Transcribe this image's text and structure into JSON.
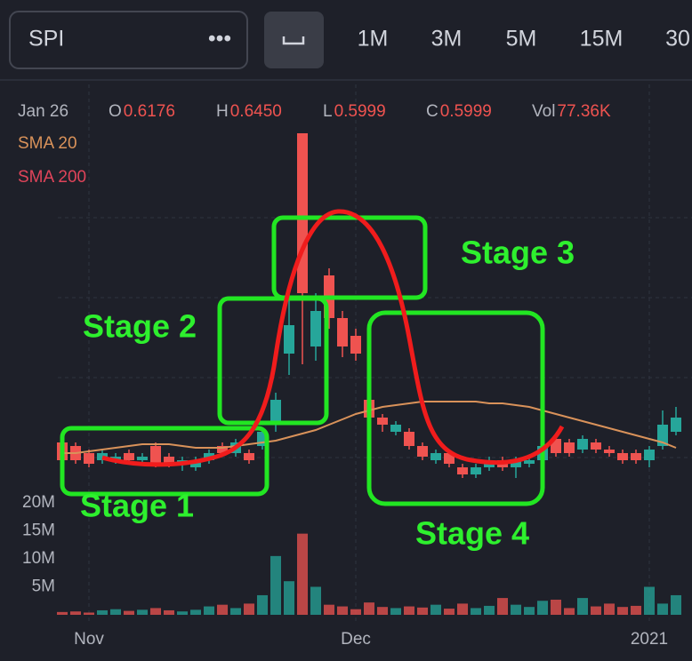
{
  "toolbar": {
    "symbol": "SPI",
    "more": "•••",
    "timeframes": [
      "1M",
      "3M",
      "5M",
      "15M",
      "30"
    ]
  },
  "legend": {
    "date": "Jan 26",
    "items": [
      {
        "label": "O",
        "value": "0.6176"
      },
      {
        "label": "H",
        "value": "0.6450"
      },
      {
        "label": "L",
        "value": "0.5999"
      },
      {
        "label": "C",
        "value": "0.5999"
      },
      {
        "label": "Vol",
        "value": "77.36K"
      }
    ],
    "sma200": "SMA 200"
  },
  "chart_data": {
    "type": "candlestick",
    "categories": [
      null,
      null,
      "Nov",
      null,
      null,
      null,
      null,
      null,
      null,
      null,
      null,
      null,
      null,
      null,
      null,
      null,
      null,
      null,
      null,
      null,
      null,
      null,
      "Dec",
      null,
      null,
      null,
      null,
      null,
      null,
      null,
      null,
      null,
      null,
      null,
      null,
      null,
      null,
      null,
      null,
      null,
      null,
      null,
      null,
      null,
      "2021",
      null,
      null
    ],
    "open": [
      0.63,
      0.62,
      0.6,
      0.58,
      0.58,
      0.6,
      0.58,
      0.62,
      0.59,
      0.57,
      0.56,
      0.58,
      0.62,
      0.6,
      0.6,
      0.62,
      0.68,
      0.88,
      1.5,
      0.9,
      1.1,
      0.98,
      0.93,
      0.75,
      0.7,
      0.66,
      0.66,
      0.62,
      0.58,
      0.6,
      0.56,
      0.54,
      0.56,
      0.58,
      0.56,
      0.57,
      0.58,
      0.64,
      0.63,
      0.61,
      0.63,
      0.61,
      0.6,
      0.6,
      0.58,
      0.62,
      0.66
    ],
    "high": [
      0.64,
      0.63,
      0.61,
      0.61,
      0.6,
      0.61,
      0.6,
      0.63,
      0.6,
      0.59,
      0.59,
      0.61,
      0.63,
      0.64,
      0.61,
      0.67,
      0.77,
      1.05,
      1.5,
      1.05,
      1.12,
      1.0,
      0.95,
      0.76,
      0.71,
      0.69,
      0.67,
      0.63,
      0.61,
      0.61,
      0.57,
      0.57,
      0.59,
      0.59,
      0.59,
      0.59,
      0.63,
      0.65,
      0.64,
      0.65,
      0.64,
      0.62,
      0.61,
      0.61,
      0.62,
      0.72,
      0.73
    ],
    "low": [
      0.57,
      0.57,
      0.56,
      0.57,
      0.57,
      0.57,
      0.57,
      0.56,
      0.56,
      0.55,
      0.55,
      0.57,
      0.59,
      0.59,
      0.57,
      0.61,
      0.66,
      0.82,
      0.85,
      0.86,
      0.95,
      0.87,
      0.86,
      0.69,
      0.66,
      0.65,
      0.61,
      0.58,
      0.57,
      0.56,
      0.53,
      0.53,
      0.55,
      0.55,
      0.53,
      0.56,
      0.57,
      0.59,
      0.59,
      0.6,
      0.6,
      0.59,
      0.57,
      0.57,
      0.56,
      0.61,
      0.65
    ],
    "close": [
      0.58,
      0.58,
      0.57,
      0.6,
      0.59,
      0.58,
      0.59,
      0.57,
      0.57,
      0.58,
      0.58,
      0.6,
      0.6,
      0.63,
      0.58,
      0.66,
      0.75,
      0.96,
      1.05,
      1.0,
      0.98,
      0.9,
      0.88,
      0.7,
      0.68,
      0.68,
      0.62,
      0.59,
      0.6,
      0.57,
      0.54,
      0.56,
      0.58,
      0.56,
      0.58,
      0.58,
      0.62,
      0.6,
      0.6,
      0.64,
      0.61,
      0.6,
      0.58,
      0.58,
      0.61,
      0.68,
      0.7
    ],
    "up_color": "#26a69a",
    "down_color": "#ef5350",
    "series": [
      {
        "name": "SMA 20",
        "color": "#d9925a",
        "values": [
          0.6,
          0.6,
          0.605,
          0.61,
          0.615,
          0.62,
          0.625,
          0.625,
          0.625,
          0.62,
          0.615,
          0.615,
          0.615,
          0.62,
          0.625,
          0.63,
          0.635,
          0.645,
          0.655,
          0.665,
          0.68,
          0.695,
          0.71,
          0.72,
          0.73,
          0.735,
          0.74,
          0.745,
          0.745,
          0.745,
          0.745,
          0.745,
          0.74,
          0.74,
          0.735,
          0.73,
          0.72,
          0.71,
          0.7,
          0.69,
          0.68,
          0.67,
          0.66,
          0.65,
          0.64,
          0.63,
          0.615
        ]
      }
    ],
    "ylim": [
      0.4,
      1.6
    ],
    "volume": [
      0.5,
      0.6,
      0.4,
      0.8,
      1.0,
      0.7,
      0.9,
      1.2,
      0.8,
      0.6,
      0.9,
      1.5,
      1.8,
      1.2,
      2.0,
      3.5,
      10.5,
      6.0,
      14.5,
      5.0,
      1.8,
      1.5,
      1.0,
      2.2,
      1.4,
      1.2,
      1.5,
      1.3,
      1.8,
      1.1,
      2.0,
      1.2,
      1.6,
      3.0,
      1.8,
      1.4,
      2.5,
      2.7,
      1.2,
      3.0,
      1.5,
      2.0,
      1.4,
      1.6,
      5.0,
      2.0,
      3.5
    ],
    "volume_ylim": [
      0,
      20
    ],
    "volume_yticks": [
      {
        "value": 5,
        "label": "5M"
      },
      {
        "value": 10,
        "label": "10M"
      },
      {
        "value": 15,
        "label": "15M"
      },
      {
        "value": 20,
        "label": "20M"
      }
    ]
  },
  "annotations": [
    "Stage 1",
    "Stage 2",
    "Stage 3",
    "Stage 4"
  ]
}
